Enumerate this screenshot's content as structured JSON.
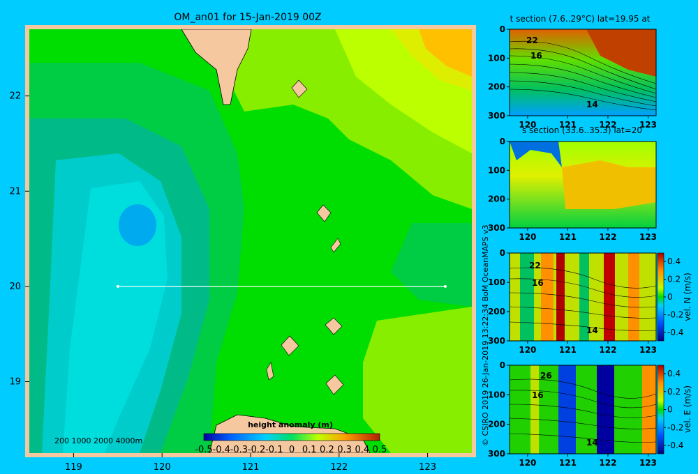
{
  "title": "OM_an01 for 15-Jan-2019 00Z",
  "credit": "© CSIRO 2019   26-Jan-2019 13:22:34 BoM OceanMAPS v3",
  "depth_scale_label": "200  1000  2000  4000m",
  "colors": {
    "background": "#00ccff",
    "land": "#f5c8a0",
    "section_line": "#ffffff"
  },
  "chart_data": [
    {
      "type": "heatmap",
      "name": "map",
      "title": "OM_an01 for 15-Jan-2019 00Z",
      "x_ticks": [
        "119",
        "120",
        "121",
        "122",
        "123"
      ],
      "y_ticks": [
        "22",
        "21",
        "20",
        "19"
      ],
      "xlim": [
        118.5,
        123.5
      ],
      "ylim": [
        18.25,
        22.7
      ],
      "section_line": {
        "lat": 20,
        "lon_start": 119.5,
        "lon_end": 123.2
      },
      "colorbar": {
        "label": "height anomaly (m)",
        "range": [
          -0.5,
          0.5
        ],
        "tick_labels": [
          "-0.5",
          "-0.4",
          "-0.3",
          "-0.2",
          "-0.1",
          "0",
          "0.1",
          "0.2",
          "0.3",
          "0.4",
          "0.5"
        ]
      }
    },
    {
      "type": "heatmap",
      "name": "temperature-section",
      "title": "t section (7.6..29°C) lat=19.95 at",
      "x_ticks": [
        "120",
        "121",
        "122",
        "123"
      ],
      "y_ticks": [
        "0",
        "100",
        "200",
        "300"
      ],
      "contour_labels": [
        "22",
        "16",
        "14"
      ]
    },
    {
      "type": "heatmap",
      "name": "salinity-section",
      "title": "s section (33.6..35.3) lat=20",
      "x_ticks": [
        "120",
        "121",
        "122",
        "123"
      ],
      "y_ticks": [
        "0",
        "100",
        "200",
        "300"
      ]
    },
    {
      "type": "heatmap",
      "name": "north-velocity-section",
      "x_ticks": [
        "120",
        "121",
        "122",
        "123"
      ],
      "y_ticks": [
        "0",
        "100",
        "200",
        "300"
      ],
      "contour_labels": [
        "22",
        "16",
        "14"
      ],
      "colorbar": {
        "label": "vel. N (m/s)",
        "range": [
          -0.4,
          0.4
        ],
        "tick_labels": [
          "0.4",
          "0.2",
          "0",
          "-0.2",
          "-0.4"
        ]
      }
    },
    {
      "type": "heatmap",
      "name": "east-velocity-section",
      "x_ticks": [
        "120",
        "121",
        "122",
        "123"
      ],
      "y_ticks": [
        "0",
        "100",
        "200",
        "300"
      ],
      "contour_labels": [
        "26",
        "16",
        "14"
      ],
      "colorbar": {
        "label": "vel. E (m/s)",
        "range": [
          -0.4,
          0.4
        ],
        "tick_labels": [
          "0.4",
          "0.2",
          "0",
          "-0.2",
          "-0.4"
        ]
      }
    }
  ]
}
